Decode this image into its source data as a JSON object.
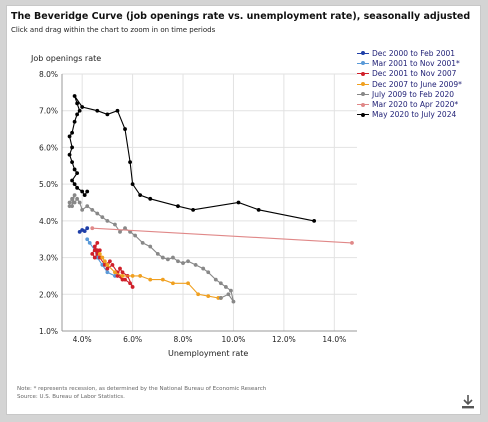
{
  "title": "The Beveridge Curve (job openings rate vs. unemployment rate), seasonally adjusted",
  "subtitle": "Click and drag within the chart to zoom in on time periods",
  "note_line1": "Note: * represents recession, as determined by the National Bureau of Economic Research",
  "note_line2": "Source: U.S. Bureau of Labor Statistics.",
  "download_icon": "download-icon",
  "chart_data": {
    "type": "scatter",
    "xlabel": "Unemployment rate",
    "ylabel": "Job openings rate",
    "xlim": [
      3.2,
      14.9
    ],
    "ylim": [
      1.0,
      8.0
    ],
    "xticks": [
      "4.0%",
      "6.0%",
      "8.0%",
      "10.0%",
      "12.0%",
      "14.0%"
    ],
    "yticks": [
      "1.0%",
      "2.0%",
      "3.0%",
      "4.0%",
      "5.0%",
      "6.0%",
      "7.0%",
      "8.0%"
    ],
    "grid": true,
    "legend_position": "top-right",
    "series": [
      {
        "name": "Dec 2000 to Feb 2001",
        "color": "#1f3fa8",
        "points": [
          [
            3.9,
            3.7
          ],
          [
            4.0,
            3.75
          ],
          [
            4.1,
            3.72
          ],
          [
            4.2,
            3.8
          ]
        ]
      },
      {
        "name": "Mar 2001 to Nov 2001*",
        "color": "#5a9ad8",
        "points": [
          [
            4.2,
            3.5
          ],
          [
            4.3,
            3.4
          ],
          [
            4.5,
            3.2
          ],
          [
            4.6,
            3.0
          ],
          [
            4.8,
            2.8
          ],
          [
            5.0,
            2.6
          ],
          [
            5.3,
            2.5
          ]
        ]
      },
      {
        "name": "Dec 2001 to Nov 2007",
        "color": "#d0202a",
        "points": [
          [
            5.7,
            2.4
          ],
          [
            5.9,
            2.3
          ],
          [
            6.0,
            2.2
          ],
          [
            5.8,
            2.5
          ],
          [
            5.6,
            2.6
          ],
          [
            5.5,
            2.7
          ],
          [
            5.4,
            2.5
          ],
          [
            5.6,
            2.4
          ],
          [
            5.4,
            2.6
          ],
          [
            5.2,
            2.8
          ],
          [
            5.0,
            2.7
          ],
          [
            5.1,
            2.9
          ],
          [
            4.9,
            2.8
          ],
          [
            4.7,
            3.0
          ],
          [
            4.6,
            3.2
          ],
          [
            4.5,
            3.3
          ],
          [
            4.6,
            3.4
          ],
          [
            4.4,
            3.1
          ],
          [
            4.5,
            3.0
          ],
          [
            4.7,
            3.2
          ],
          [
            4.6,
            3.1
          ],
          [
            4.5,
            3.2
          ]
        ]
      },
      {
        "name": "Dec 2007 to June 2009*",
        "color": "#f0a020",
        "points": [
          [
            4.7,
            3.1
          ],
          [
            4.8,
            3.0
          ],
          [
            4.9,
            2.9
          ],
          [
            5.0,
            2.8
          ],
          [
            5.3,
            2.6
          ],
          [
            5.6,
            2.5
          ],
          [
            6.0,
            2.5
          ],
          [
            6.3,
            2.5
          ],
          [
            6.7,
            2.4
          ],
          [
            7.2,
            2.4
          ],
          [
            7.6,
            2.3
          ],
          [
            8.2,
            2.3
          ],
          [
            8.6,
            2.0
          ],
          [
            9.0,
            1.95
          ],
          [
            9.4,
            1.9
          ],
          [
            9.5,
            1.9
          ]
        ]
      },
      {
        "name": "July 2009 to Feb 2020",
        "color": "#888888",
        "points": [
          [
            9.5,
            1.9
          ],
          [
            9.8,
            2.0
          ],
          [
            10.0,
            1.8
          ],
          [
            9.9,
            2.1
          ],
          [
            9.7,
            2.2
          ],
          [
            9.5,
            2.3
          ],
          [
            9.3,
            2.4
          ],
          [
            9.0,
            2.6
          ],
          [
            8.8,
            2.7
          ],
          [
            8.5,
            2.8
          ],
          [
            8.2,
            2.9
          ],
          [
            8.0,
            2.85
          ],
          [
            7.8,
            2.9
          ],
          [
            7.6,
            3.0
          ],
          [
            7.4,
            2.95
          ],
          [
            7.2,
            3.0
          ],
          [
            7.0,
            3.1
          ],
          [
            6.7,
            3.3
          ],
          [
            6.4,
            3.4
          ],
          [
            6.1,
            3.6
          ],
          [
            5.9,
            3.7
          ],
          [
            5.7,
            3.8
          ],
          [
            5.5,
            3.7
          ],
          [
            5.3,
            3.9
          ],
          [
            5.0,
            4.0
          ],
          [
            4.8,
            4.1
          ],
          [
            4.6,
            4.2
          ],
          [
            4.4,
            4.3
          ],
          [
            4.2,
            4.4
          ],
          [
            4.0,
            4.3
          ],
          [
            3.9,
            4.5
          ],
          [
            3.8,
            4.6
          ],
          [
            3.7,
            4.5
          ],
          [
            3.6,
            4.6
          ],
          [
            3.6,
            4.4
          ],
          [
            3.7,
            4.7
          ],
          [
            3.5,
            4.5
          ],
          [
            3.5,
            4.4
          ]
        ]
      },
      {
        "name": "Mar 2020 to Apr 2020*",
        "color": "#e08888",
        "points": [
          [
            4.4,
            3.8
          ],
          [
            14.7,
            3.4
          ]
        ]
      },
      {
        "name": "May 2020 to July 2024",
        "color": "#000000",
        "points": [
          [
            13.2,
            4.0
          ],
          [
            11.0,
            4.3
          ],
          [
            10.2,
            4.5
          ],
          [
            8.4,
            4.3
          ],
          [
            7.8,
            4.4
          ],
          [
            6.7,
            4.6
          ],
          [
            6.3,
            4.7
          ],
          [
            6.0,
            5.0
          ],
          [
            5.9,
            5.6
          ],
          [
            5.7,
            6.5
          ],
          [
            5.4,
            7.0
          ],
          [
            5.0,
            6.9
          ],
          [
            4.6,
            7.0
          ],
          [
            4.0,
            7.1
          ],
          [
            3.7,
            7.4
          ],
          [
            3.8,
            7.2
          ],
          [
            3.9,
            7.0
          ],
          [
            3.8,
            6.9
          ],
          [
            3.7,
            6.7
          ],
          [
            3.6,
            6.4
          ],
          [
            3.5,
            6.3
          ],
          [
            3.6,
            6.0
          ],
          [
            3.5,
            5.8
          ],
          [
            3.6,
            5.6
          ],
          [
            3.7,
            5.4
          ],
          [
            3.8,
            5.3
          ],
          [
            3.6,
            5.1
          ],
          [
            3.7,
            5.0
          ],
          [
            3.8,
            4.9
          ],
          [
            4.0,
            4.8
          ],
          [
            4.1,
            4.7
          ],
          [
            4.2,
            4.8
          ]
        ]
      }
    ]
  }
}
